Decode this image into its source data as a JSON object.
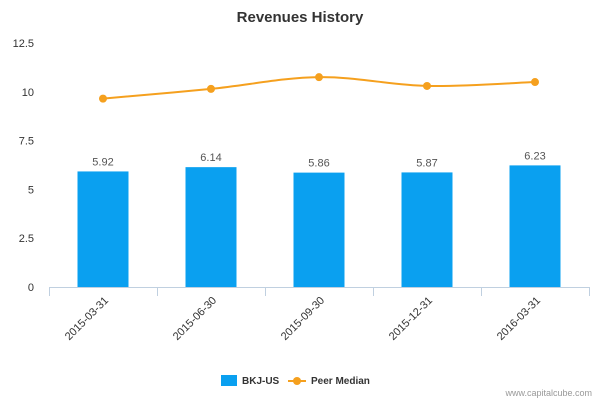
{
  "chart_data": {
    "type": "bar",
    "title": "Revenues History",
    "categories": [
      "2015-03-31",
      "2015-06-30",
      "2015-09-30",
      "2015-12-31",
      "2016-03-31"
    ],
    "series": [
      {
        "name": "BKJ-US",
        "type": "bar",
        "color": "#0aa0f0",
        "values": [
          5.92,
          6.14,
          5.86,
          5.87,
          6.23
        ],
        "data_labels": [
          "5.92",
          "6.14",
          "5.86",
          "5.87",
          "6.23"
        ]
      },
      {
        "name": "Peer Median",
        "type": "line",
        "color": "#f5a01e",
        "values": [
          9.65,
          10.15,
          10.75,
          10.3,
          10.5
        ]
      }
    ],
    "ylim": [
      0,
      12.5
    ],
    "yticks": [
      0,
      2.5,
      5,
      7.5,
      10,
      12.5
    ],
    "ytick_labels": [
      "0",
      "2.5",
      "5",
      "7.5",
      "10",
      "12.5"
    ],
    "xlabel": "",
    "ylabel": "",
    "grid": false,
    "legend_position": "bottom-center"
  },
  "credit": "www.capitalcube.com"
}
